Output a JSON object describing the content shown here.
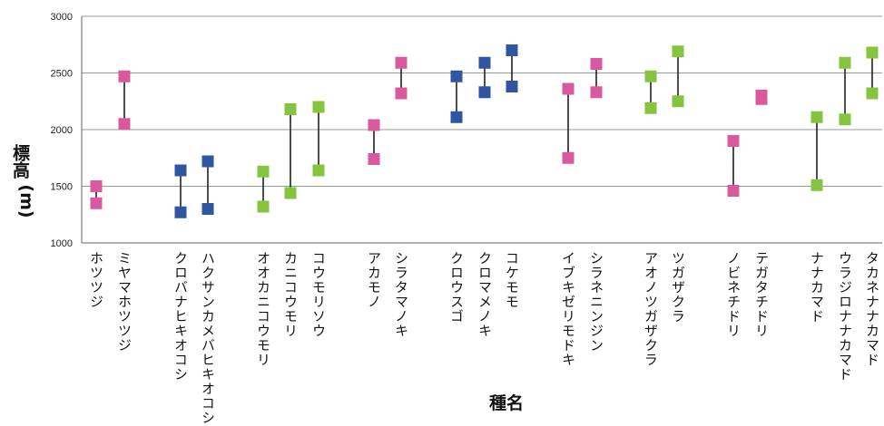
{
  "chart_data": {
    "type": "range",
    "title": "",
    "xlabel": "種名",
    "ylabel": "標高 (m)",
    "ylabel_main": "標高",
    "ylabel_unit": "(m)",
    "ylim": [
      1000,
      3000
    ],
    "yticks": [
      1000,
      1500,
      2000,
      2500,
      3000
    ],
    "grid": true,
    "legend": "none",
    "colors": {
      "pink": "#d9599f",
      "blue": "#2f55a3",
      "green": "#86c440",
      "line": "#222222",
      "grid": "#9a9a9a"
    },
    "species": [
      {
        "name": "ホツツジ",
        "min": 1350,
        "max": 1500,
        "color": "pink"
      },
      {
        "name": "ミヤマホツツジ",
        "min": 2050,
        "max": 2470,
        "color": "pink"
      },
      {
        "name": "クロバナヒキオコシ",
        "min": 1270,
        "max": 1640,
        "color": "blue"
      },
      {
        "name": "ハクサンカメバヒキオコシ",
        "min": 1300,
        "max": 1720,
        "color": "blue"
      },
      {
        "name": "オオカニコウモリ",
        "min": 1320,
        "max": 1630,
        "color": "green"
      },
      {
        "name": "カニコウモリ",
        "min": 1440,
        "max": 2180,
        "color": "green"
      },
      {
        "name": "コウモリソウ",
        "min": 1640,
        "max": 2200,
        "color": "green"
      },
      {
        "name": "アカモノ",
        "min": 1740,
        "max": 2040,
        "color": "pink"
      },
      {
        "name": "シラタマノキ",
        "min": 2320,
        "max": 2590,
        "color": "pink"
      },
      {
        "name": "クロウスゴ",
        "min": 2110,
        "max": 2470,
        "color": "blue"
      },
      {
        "name": "クロマメノキ",
        "min": 2330,
        "max": 2590,
        "color": "blue"
      },
      {
        "name": "コケモモ",
        "min": 2380,
        "max": 2700,
        "color": "blue"
      },
      {
        "name": "イブキゼリモドキ",
        "min": 1750,
        "max": 2360,
        "color": "pink"
      },
      {
        "name": "シラネニンジン",
        "min": 2330,
        "max": 2580,
        "color": "pink"
      },
      {
        "name": "アオノツガザクラ",
        "min": 2190,
        "max": 2470,
        "color": "green"
      },
      {
        "name": "ツガザクラ",
        "min": 2250,
        "max": 2690,
        "color": "green"
      },
      {
        "name": "ノビネチドリ",
        "min": 1460,
        "max": 1900,
        "color": "pink"
      },
      {
        "name": "テガタチドリ",
        "min": 2270,
        "max": 2300,
        "color": "pink"
      },
      {
        "name": "ナナカマド",
        "min": 1510,
        "max": 2110,
        "color": "green"
      },
      {
        "name": "ウラジロナナカマド",
        "min": 2090,
        "max": 2590,
        "color": "green"
      },
      {
        "name": "タカネナナカマド",
        "min": 2320,
        "max": 2680,
        "color": "green"
      }
    ]
  }
}
